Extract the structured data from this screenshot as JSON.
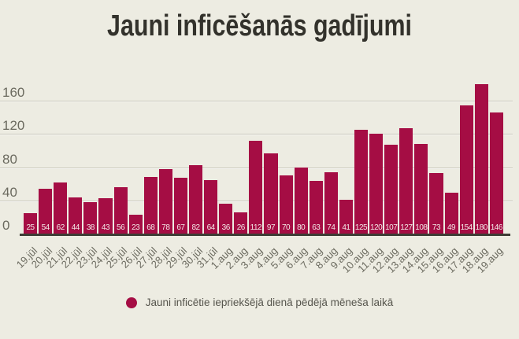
{
  "chart_data": {
    "type": "bar",
    "title": "Jauni inficēšanās gadījumi",
    "categories": [
      "19.jūl",
      "20.jūl",
      "21.jūl",
      "22.jūl",
      "23.jūl",
      "24.jūl",
      "25.jūl",
      "26.jūl",
      "27.jūl",
      "28.jūl",
      "29.jūl",
      "30.jūl",
      "31.jūl",
      "1.aug",
      "2.aug",
      "3.aug",
      "4.aug",
      "5.aug",
      "6.aug",
      "7.aug",
      "8.aug",
      "9.aug",
      "10.aug",
      "11.aug",
      "12.aug",
      "13.aug",
      "14.aug",
      "15.aug",
      "16.aug",
      "17.aug",
      "18.aug",
      "19.aug"
    ],
    "values": [
      25,
      54,
      62,
      44,
      38,
      43,
      56,
      23,
      68,
      78,
      67,
      82,
      64,
      36,
      26,
      112,
      97,
      70,
      80,
      63,
      74,
      41,
      125,
      120,
      107,
      127,
      108,
      73,
      49,
      154,
      180,
      146
    ],
    "xlabel": "",
    "ylabel": "",
    "ylim": [
      0,
      185
    ],
    "y_ticks": [
      0,
      40,
      80,
      120,
      160
    ],
    "grid": "horizontal",
    "legend_position": "bottom",
    "legend_label": "Jauni inficētie iepriekšējā dienā pēdējā mēneša laikā",
    "bar_color": "#a50d44",
    "background_color": "#edece2",
    "value_labels_shown": true
  }
}
